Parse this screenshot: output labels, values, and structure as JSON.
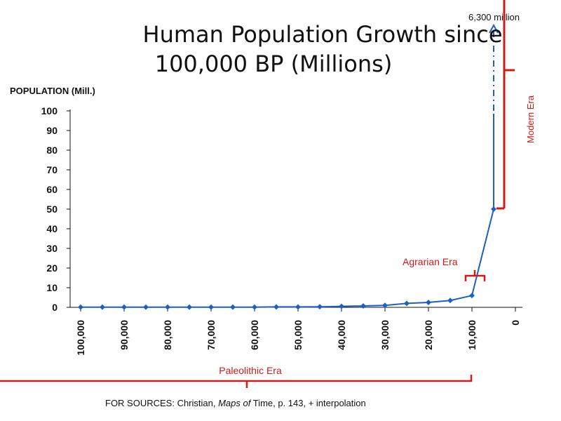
{
  "chart_data": {
    "type": "line",
    "title_line1": "Human Population Growth since",
    "title_line2": "100,000 BP (Millions)",
    "ylabel": "POPULATION (Mill.)",
    "x_ticks": [
      "100,000",
      "90,000",
      "80,000",
      "70,000",
      "60,000",
      "50,000",
      "40,000",
      "30,000",
      "20,000",
      "10,000",
      "0"
    ],
    "y_ticks": [
      "0",
      "10",
      "20",
      "30",
      "40",
      "50",
      "60",
      "70",
      "80",
      "90",
      "100"
    ],
    "xlim": [
      100000,
      0
    ],
    "ylim": [
      0,
      100
    ],
    "grid": false,
    "series": [
      {
        "color": "#1f5fbf",
        "x": [
          100000,
          95000,
          90000,
          85000,
          80000,
          75000,
          70000,
          65000,
          60000,
          55000,
          50000,
          45000,
          40000,
          35000,
          30000,
          25000,
          20000,
          15000,
          10000,
          5000
        ],
        "y": [
          0.1,
          0.1,
          0.1,
          0.1,
          0.1,
          0.1,
          0.1,
          0.1,
          0.1,
          0.2,
          0.2,
          0.3,
          0.5,
          0.7,
          1,
          2,
          2.5,
          3.5,
          6,
          50
        ]
      }
    ],
    "annotations": {
      "modern_top": "6,300 million",
      "modern_era": "Modern Era",
      "agrarian_era": "Agrarian Era",
      "paleolithic_era": "Paleolithic Era"
    },
    "accent_color": "#d01a1a"
  },
  "source": {
    "prefix": "FOR SOURCES: Christian, ",
    "book": "Maps of",
    "suffix": " Time, p. 143, + interpolation"
  }
}
